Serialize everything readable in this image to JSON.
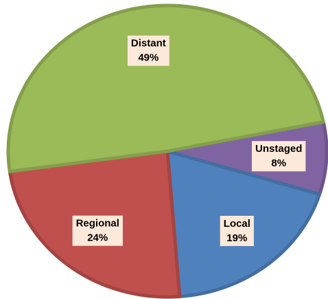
{
  "chart_data": {
    "type": "pie",
    "categories": [
      "Unstaged",
      "Local",
      "Regional",
      "Distant"
    ],
    "values": [
      8,
      19,
      24,
      49
    ],
    "value_labels": [
      "8%",
      "19%",
      "24%",
      "49%"
    ],
    "colors": [
      "#8064a2",
      "#4f81bd",
      "#c0504d",
      "#9bbb59"
    ]
  }
}
